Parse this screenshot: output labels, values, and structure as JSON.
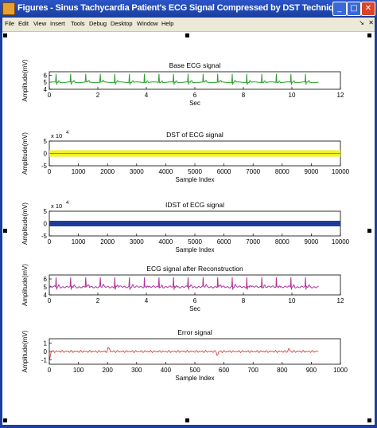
{
  "window": {
    "title": "Figures - Sinus Tachycardia Patient's ECG Signal Compressed by DST Technique",
    "controls": [
      "minimize",
      "maximize",
      "close"
    ]
  },
  "menu": {
    "items": [
      "File",
      "Edit",
      "View",
      "Insert",
      "Tools",
      "Debug",
      "Desktop",
      "Window",
      "Help"
    ]
  },
  "colors": {
    "titlebar": "#1b3f9e",
    "ecg_green": "#2ea02e",
    "dst_yellow": "#f2f222",
    "idst_blue": "#1f3f9a",
    "recon_magenta": "#b0349a",
    "error_red": "#d0302a"
  },
  "chart_data": [
    {
      "type": "line",
      "title": "Base ECG signal",
      "xlabel": "Sec",
      "ylabel": "Amplitude(mV)",
      "xlim": [
        0,
        12
      ],
      "ylim": [
        4,
        6.5
      ],
      "xticks": [
        "0",
        "2",
        "4",
        "6",
        "8",
        "10",
        "12"
      ],
      "yticks": [
        "4",
        "5",
        "6"
      ],
      "exponent": "",
      "series": [
        {
          "color": "#2ea02e",
          "baseline": 5,
          "spikes": 6.2,
          "x_end": 11.1
        }
      ]
    },
    {
      "type": "line",
      "title": "DST of ECG signal",
      "xlabel": "Sample Index",
      "ylabel": "Amplitude(mV)",
      "xlim": [
        0,
        10000
      ],
      "ylim": [
        -5,
        5
      ],
      "xticks": [
        "0",
        "1000",
        "2000",
        "3000",
        "4000",
        "5000",
        "6000",
        "7000",
        "8000",
        "9000",
        "10000"
      ],
      "yticks": [
        "-5",
        "0",
        "5"
      ],
      "exponent": "x 10^4",
      "series": [
        {
          "color": "#f2f222",
          "baseline": 0,
          "x_end": 10000
        }
      ]
    },
    {
      "type": "line",
      "title": "IDST of ECG signal",
      "xlabel": "Sample Index",
      "ylabel": "Amplitude(mV)",
      "xlim": [
        0,
        10000
      ],
      "ylim": [
        -5,
        5
      ],
      "xticks": [
        "0",
        "1000",
        "2000",
        "3000",
        "4000",
        "5000",
        "6000",
        "7000",
        "8000",
        "9000",
        "10000"
      ],
      "yticks": [
        "-5",
        "0",
        "5"
      ],
      "exponent": "x 10^4",
      "series": [
        {
          "color": "#1f3f9a",
          "baseline": 0,
          "x_end": 10000
        }
      ]
    },
    {
      "type": "line",
      "title": "ECG signal after Reconstruction",
      "xlabel": "Sec",
      "ylabel": "Amplitude(mV)",
      "xlim": [
        0,
        12
      ],
      "ylim": [
        4,
        6.5
      ],
      "xticks": [
        "0",
        "2",
        "4",
        "6",
        "8",
        "10",
        "12"
      ],
      "yticks": [
        "4",
        "5",
        "6"
      ],
      "exponent": "",
      "series": [
        {
          "color": "#b0349a",
          "baseline": 5,
          "spikes": 6.2,
          "x_end": 11.1
        }
      ]
    },
    {
      "type": "line",
      "title": "Error signal",
      "xlabel": "Sample Index",
      "ylabel": "Amplitude(mV)",
      "xlim": [
        0,
        1000
      ],
      "ylim": [
        -1.5,
        1.5
      ],
      "xticks": [
        "0",
        "100",
        "200",
        "300",
        "400",
        "500",
        "600",
        "700",
        "800",
        "900",
        "1000"
      ],
      "yticks": [
        "-1",
        "0",
        "1"
      ],
      "exponent": "",
      "series": [
        {
          "color": "#d0302a",
          "baseline": 0,
          "x_end": 1000
        }
      ]
    }
  ]
}
